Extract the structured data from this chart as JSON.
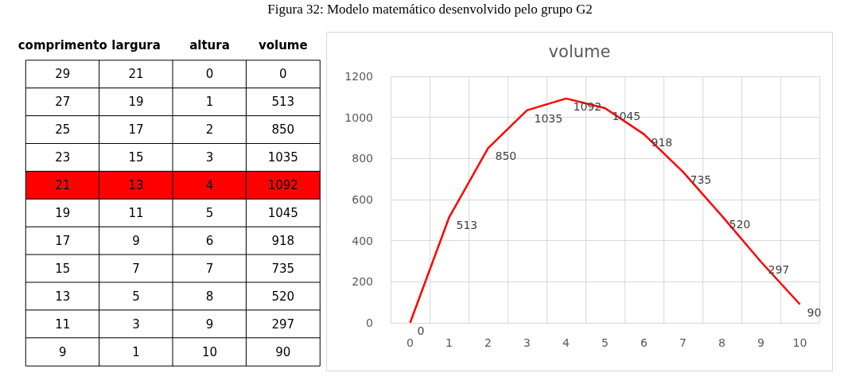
{
  "chart_data": [
    {
      "type": "heatmap",
      "title": "Figura 32: Modelo matemático desenvolvido pelo grupo G2",
      "categories": [
        "comprimento",
        "largura",
        "altura",
        "volume"
      ],
      "y_categories": [
        null,
        null,
        null,
        null,
        null,
        null,
        null,
        null,
        null,
        null,
        null
      ],
      "cells": [
        [
          29,
          21,
          0,
          0
        ],
        [
          27,
          19,
          1,
          513
        ],
        [
          25,
          17,
          2,
          850
        ],
        [
          23,
          15,
          3,
          1035
        ],
        [
          21,
          13,
          4,
          1092
        ],
        [
          19,
          11,
          5,
          1045
        ],
        [
          17,
          9,
          6,
          918
        ],
        [
          15,
          7,
          7,
          735
        ],
        [
          13,
          5,
          8,
          520
        ],
        [
          11,
          3,
          9,
          297
        ],
        [
          9,
          1,
          10,
          90
        ]
      ],
      "colors": [
        "#ffffff",
        "#ffffff",
        "#ffffff",
        "#ffffff",
        "#ffffff",
        "#ffffff",
        "#ffffff",
        "#ffffff",
        "#ffffff",
        "#ffffff",
        "#ffffff",
        "#ffffff",
        "#ffffff",
        "#ffffff",
        "#ffffff",
        "#ffffff",
        "#ff0000",
        "#ff0000",
        "#ff0000",
        "#ff0000",
        "#ffffff",
        "#ffffff",
        "#ffffff",
        "#ffffff",
        "#ffffff",
        "#ffffff",
        "#ffffff",
        "#ffffff",
        "#ffffff",
        "#ffffff",
        "#ffffff",
        "#ffffff",
        "#ffffff",
        "#ffffff",
        "#ffffff",
        "#ffffff",
        "#ffffff",
        "#ffffff",
        "#ffffff",
        "#ffffff",
        "#ffffff",
        "#ffffff",
        "#ffffff",
        "#ffffff"
      ],
      "data_labels": true
    },
    {
      "type": "line",
      "title": "volume",
      "categories": [
        "0",
        "1",
        "2",
        "3",
        "4",
        "5",
        "6",
        "7",
        "8",
        "9",
        "10"
      ],
      "series": [
        {
          "color": "#ff0000",
          "values": [
            0,
            513,
            850,
            1035,
            1092,
            1045,
            918,
            735,
            520,
            297,
            90
          ]
        }
      ],
      "ylim": [
        0,
        1200
      ],
      "yticks": [
        0,
        200,
        400,
        600,
        800,
        1000,
        1200
      ],
      "grid": true,
      "data_labels": true,
      "marker": "none"
    }
  ]
}
